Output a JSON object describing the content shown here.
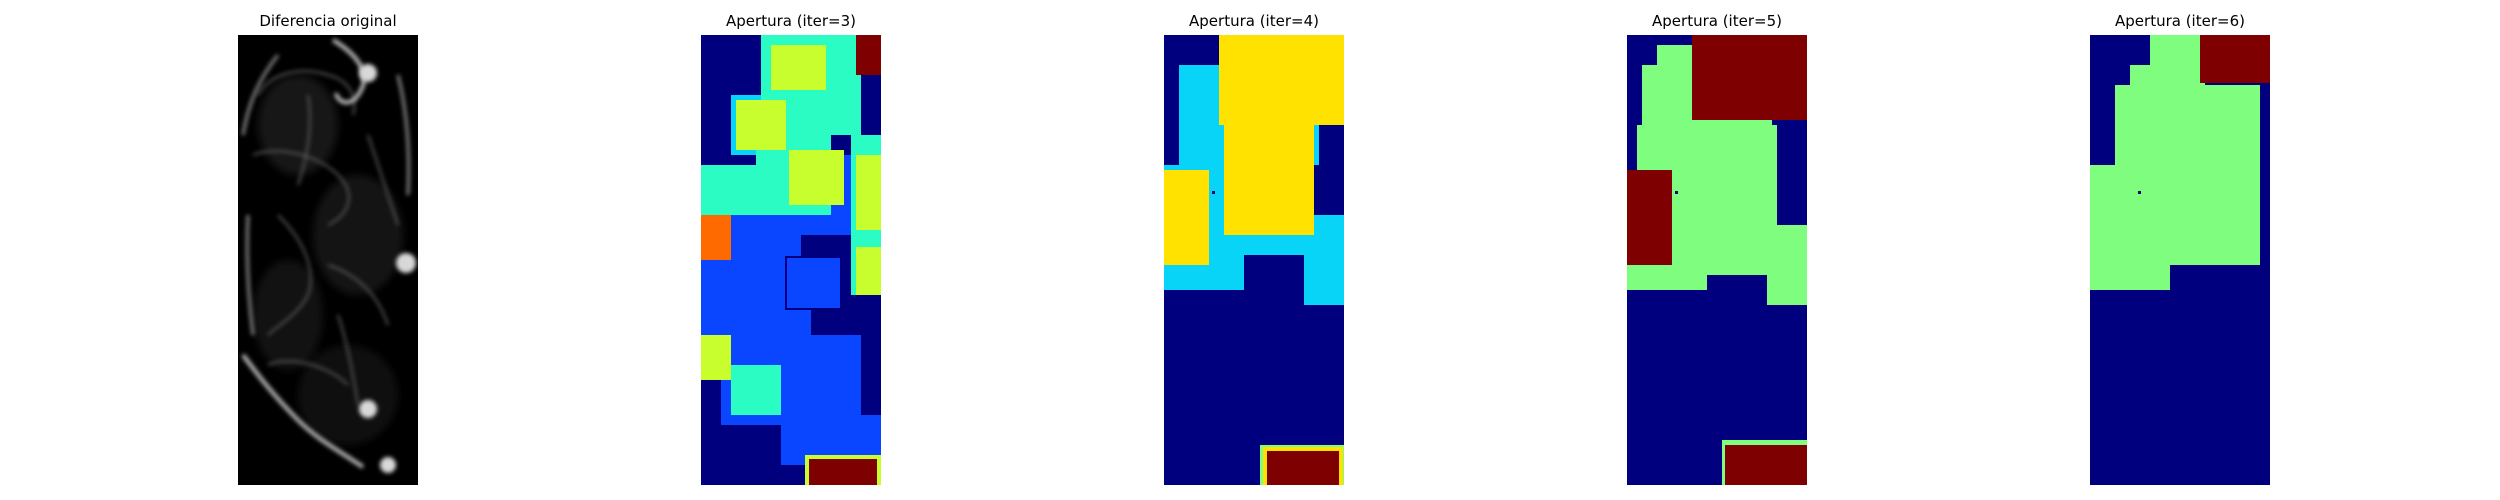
{
  "panels": [
    {
      "title": "Diferencia original",
      "kind": "grayscale"
    },
    {
      "title": "Apertura (iter=3)",
      "kind": "labels"
    },
    {
      "title": "Apertura (iter=4)",
      "kind": "labels"
    },
    {
      "title": "Apertura (iter=5)",
      "kind": "labels"
    },
    {
      "title": "Apertura (iter=6)",
      "kind": "labels"
    }
  ],
  "colormap": {
    "name": "jet",
    "navy": "#00007f",
    "blue": "#0a46ff",
    "cyan": "#08d4f8",
    "teal": "#2afcc4",
    "green": "#7efd7e",
    "yellow_green": "#c8fd2e",
    "yellow": "#ffe200",
    "orange": "#ff6a00",
    "maroon": "#7f0000"
  }
}
